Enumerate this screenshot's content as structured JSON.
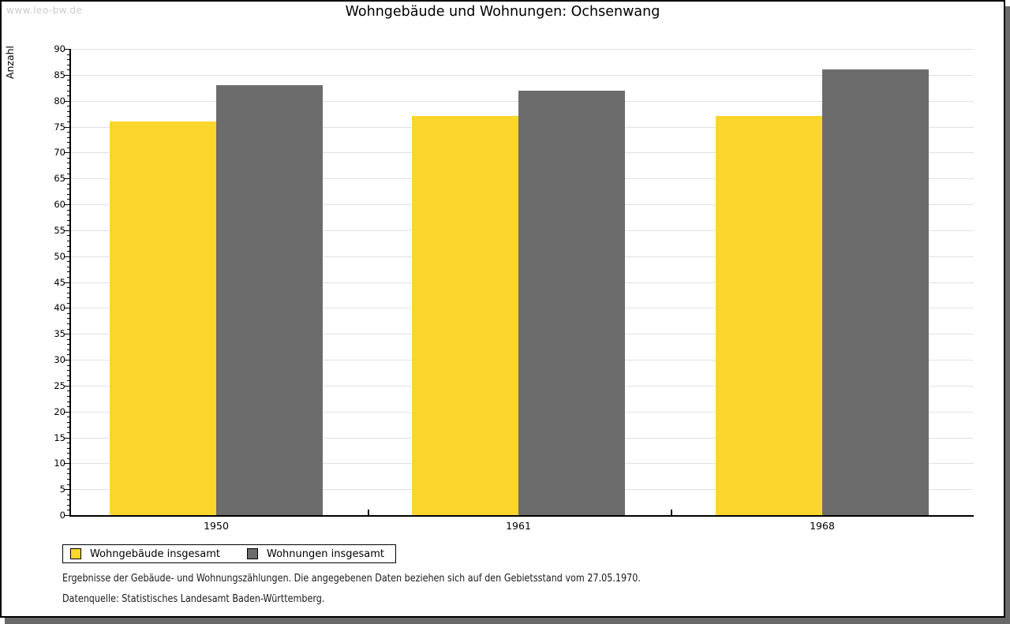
{
  "watermark": "www.leo-bw.de",
  "title": "Wohngebäude und Wohnungen: Ochsenwang",
  "chart_data": {
    "type": "bar",
    "title": "Wohngebäude und Wohnungen: Ochsenwang",
    "categories": [
      "1950",
      "1961",
      "1968"
    ],
    "series": [
      {
        "name": "Wohngebäude insgesamt",
        "color": "#fdd62d",
        "values": [
          76,
          77,
          77
        ]
      },
      {
        "name": "Wohnungen insgesamt",
        "color": "#6c6c6c",
        "values": [
          83,
          82,
          86
        ]
      }
    ],
    "xlabel": "",
    "ylabel": "Anzahl",
    "ylim": [
      0,
      90
    ],
    "ytick_step": 5,
    "minor_tick_step": 1,
    "grid": true,
    "legend_position": "bottom-left"
  },
  "colors": {
    "bar_yellow": "#fdd62d",
    "bar_gray": "#6c6c6c",
    "gridline": "#e2e2e2",
    "axis": "#000000",
    "watermark": "#cccccc",
    "frame_shadow": "#696969"
  },
  "footer": {
    "line1": "Ergebnisse der Gebäude- und Wohnungszählungen. Die angegebenen Daten beziehen sich auf den Gebietsstand vom 27.05.1970.",
    "line2": "Datenquelle: Statistisches Landesamt Baden-Württemberg."
  }
}
